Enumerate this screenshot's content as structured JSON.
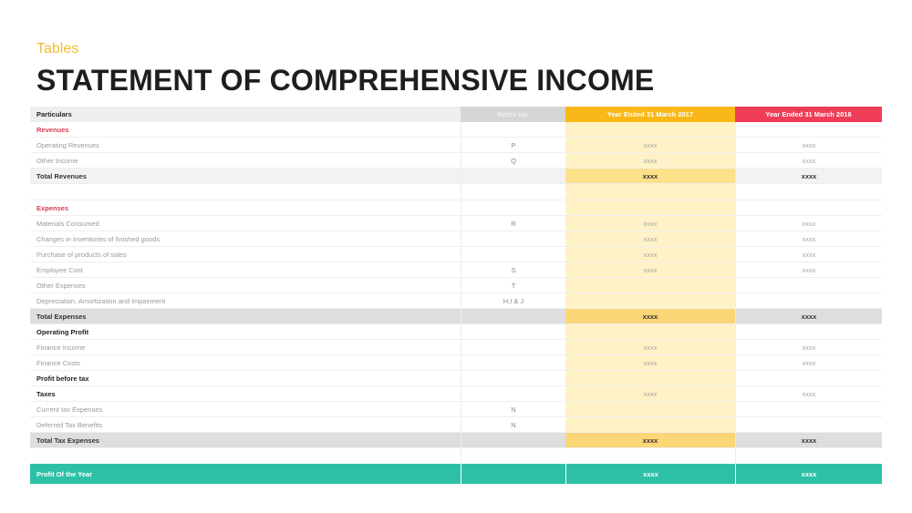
{
  "header": {
    "kicker": "Tables",
    "title": "STATEMENT OF COMPREHENSIVE  INCOME"
  },
  "table": {
    "columns": [
      "Particulars",
      "Notes no.",
      "Year  Ended 31  March  2017",
      "Year  Ended 31  March  2016"
    ],
    "rows": [
      {
        "type": "section",
        "cells": [
          "Revenues",
          "",
          "",
          ""
        ]
      },
      {
        "type": "item",
        "cells": [
          "Operating  Revenues",
          "P",
          "xxxx",
          "xxxx"
        ]
      },
      {
        "type": "item",
        "cells": [
          "Other  Income",
          "Q",
          "xxxx",
          "xxxx"
        ]
      },
      {
        "type": "total",
        "cells": [
          "Total  Revenues",
          "",
          "xxxx",
          "xxxx"
        ]
      },
      {
        "type": "blank",
        "cells": [
          "",
          "",
          "",
          ""
        ]
      },
      {
        "type": "section",
        "cells": [
          "Expenses",
          "",
          "",
          ""
        ]
      },
      {
        "type": "item",
        "cells": [
          "Materials  Consumed",
          "R",
          "xxxx",
          "xxxx"
        ]
      },
      {
        "type": "item",
        "cells": [
          "Changes  in inventories  of finished  goods",
          "",
          "xxxx",
          "xxxx"
        ]
      },
      {
        "type": "item",
        "cells": [
          "Purchase  of products  of sales",
          "",
          "xxxx",
          "xxxx"
        ]
      },
      {
        "type": "item",
        "cells": [
          "Employee  Cost",
          "S",
          "xxxx",
          "xxxx"
        ]
      },
      {
        "type": "item",
        "cells": [
          "Other  Expenses",
          "T",
          "",
          ""
        ]
      },
      {
        "type": "item",
        "cells": [
          "Depreciation,  Amortization  and  impairment",
          "H,I & J",
          "",
          ""
        ]
      },
      {
        "type": "total-dark",
        "cells": [
          "Total  Expenses",
          "",
          "xxxx",
          "xxxx"
        ]
      },
      {
        "type": "bold",
        "cells": [
          "Operating  Profit",
          "",
          "",
          ""
        ]
      },
      {
        "type": "item",
        "cells": [
          "Finance  Income",
          "",
          "xxxx",
          "xxxx"
        ]
      },
      {
        "type": "item",
        "cells": [
          "Finance  Costs",
          "",
          "xxxx",
          "xxxx"
        ]
      },
      {
        "type": "bold",
        "cells": [
          "Profit  before  tax",
          "",
          "",
          ""
        ]
      },
      {
        "type": "bold",
        "cells": [
          "Taxes",
          "",
          "xxxx",
          "xxxx"
        ]
      },
      {
        "type": "item",
        "cells": [
          "Current  tax  Expenses",
          "N",
          "",
          ""
        ]
      },
      {
        "type": "item",
        "cells": [
          "Deferred  Tax  Benefits",
          "N",
          "",
          ""
        ]
      },
      {
        "type": "total-dark",
        "cells": [
          "Total  Tax  Expenses",
          "",
          "xxxx",
          "xxxx"
        ]
      },
      {
        "type": "gap",
        "cells": [
          "",
          "",
          "",
          ""
        ]
      },
      {
        "type": "profit",
        "cells": [
          "Profit  Of  the  Year",
          "",
          "xxxx",
          "xxxx"
        ]
      }
    ]
  },
  "colors": {
    "accent_yellow": "#f9b817",
    "accent_red": "#ef3d58",
    "accent_teal": "#2ec0a6",
    "section_red": "#e0384f"
  }
}
